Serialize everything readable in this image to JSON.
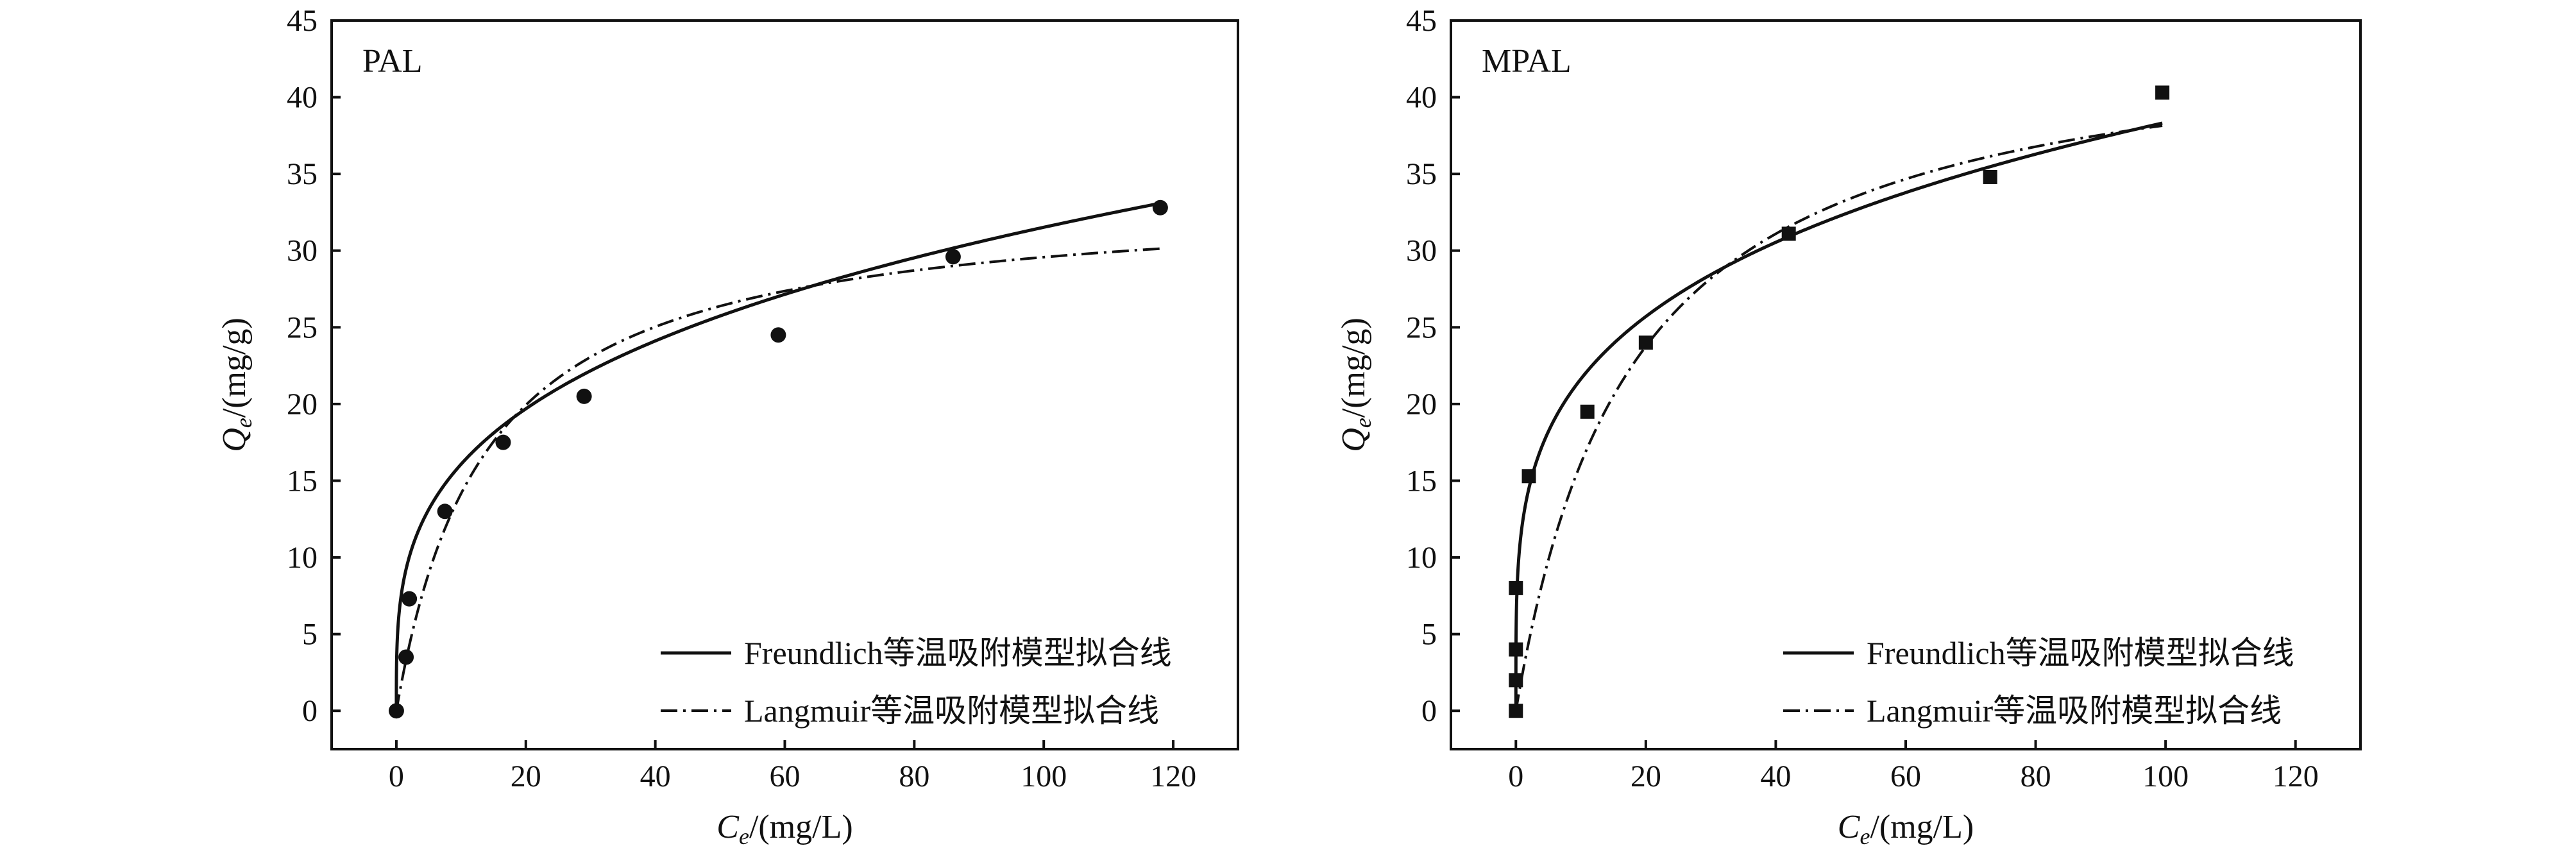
{
  "chart_data": [
    {
      "type": "scatter",
      "panel_label": "PAL",
      "xlabel": {
        "main": "C",
        "sub": "e",
        "unit": "/(mg/L)"
      },
      "ylabel": {
        "main": "Q",
        "sub": "e",
        "unit": "/(mg/g)"
      },
      "xlim": [
        -10,
        130
      ],
      "ylim": [
        -2.5,
        45
      ],
      "xticks": [
        0,
        20,
        40,
        60,
        80,
        100,
        120
      ],
      "yticks": [
        0,
        5,
        10,
        15,
        20,
        25,
        30,
        35,
        40,
        45
      ],
      "marker": "circle",
      "grid": false,
      "legend_position": "bottom-right",
      "points": [
        {
          "x": 0,
          "y": 0
        },
        {
          "x": 1.5,
          "y": 3.5
        },
        {
          "x": 2,
          "y": 7.3
        },
        {
          "x": 7.5,
          "y": 13
        },
        {
          "x": 16.5,
          "y": 17.5
        },
        {
          "x": 29,
          "y": 20.5
        },
        {
          "x": 59,
          "y": 24.5
        },
        {
          "x": 86,
          "y": 29.6
        },
        {
          "x": 118,
          "y": 32.8
        }
      ],
      "series": [
        {
          "name": "Freundlich等温吸附模型拟合线",
          "style": "solid",
          "model": "freundlich",
          "k": 8.2,
          "n": 3.42,
          "xmax": 118
        },
        {
          "name": "Langmuir等温吸附模型拟合线",
          "style": "dash-dot",
          "model": "langmuir",
          "qm": 33.64,
          "kl": 0.0727,
          "xmax": 118
        }
      ]
    },
    {
      "type": "scatter",
      "panel_label": "MPAL",
      "xlabel": {
        "main": "C",
        "sub": "e",
        "unit": "/(mg/L)"
      },
      "ylabel": {
        "main": "Q",
        "sub": "e",
        "unit": "/(mg/g)"
      },
      "xlim": [
        -10,
        130
      ],
      "ylim": [
        -2.5,
        45
      ],
      "xticks": [
        0,
        20,
        40,
        60,
        80,
        100,
        120
      ],
      "yticks": [
        0,
        5,
        10,
        15,
        20,
        25,
        30,
        35,
        40,
        45
      ],
      "marker": "square",
      "grid": false,
      "legend_position": "bottom-right",
      "points": [
        {
          "x": 0,
          "y": 0
        },
        {
          "x": 0,
          "y": 2
        },
        {
          "x": 0,
          "y": 4
        },
        {
          "x": 0,
          "y": 8
        },
        {
          "x": 2,
          "y": 15.3
        },
        {
          "x": 11,
          "y": 19.5
        },
        {
          "x": 20,
          "y": 24
        },
        {
          "x": 42,
          "y": 31.1
        },
        {
          "x": 73,
          "y": 34.8
        },
        {
          "x": 99.5,
          "y": 40.3
        }
      ],
      "series": [
        {
          "name": "Freundlich等温吸附模型拟合线",
          "style": "solid",
          "model": "freundlich",
          "k": 12.2,
          "n": 4.02,
          "xmax": 99.5
        },
        {
          "name": "Langmuir等温吸附模型拟合线",
          "style": "dash-dot",
          "model": "langmuir",
          "qm": 45.0,
          "kl": 0.0559,
          "xmax": 99.5
        }
      ]
    }
  ]
}
